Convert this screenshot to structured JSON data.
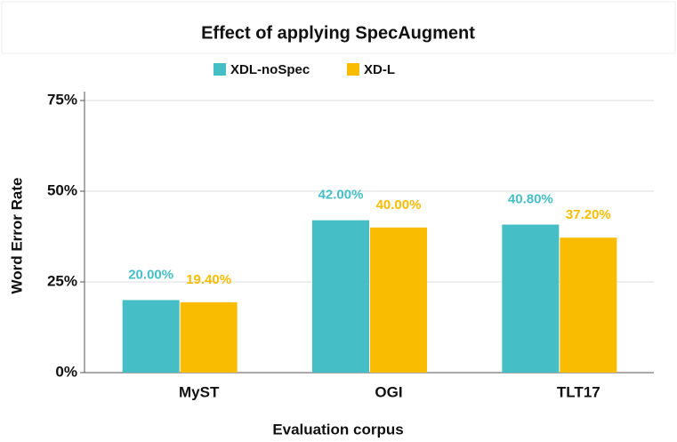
{
  "chart_data": {
    "type": "bar",
    "title": "Effect of applying SpecAugment",
    "xlabel": "Evaluation corpus",
    "ylabel": "Word Error Rate",
    "categories": [
      "MyST",
      "OGI",
      "TLT17"
    ],
    "series": [
      {
        "name": "XDL-noSpec",
        "color": "#45bec6",
        "values": [
          20.0,
          42.0,
          40.8
        ],
        "value_labels": [
          "20.00%",
          "42.00%",
          "40.80%"
        ]
      },
      {
        "name": "XD-L",
        "color": "#f9bc00",
        "values": [
          19.4,
          40.0,
          37.2
        ],
        "value_labels": [
          "19.40%",
          "40.00%",
          "37.20%"
        ]
      }
    ],
    "ylim": [
      0,
      75
    ],
    "yticks": [
      {
        "value": 0,
        "label": "0%"
      },
      {
        "value": 25,
        "label": "25%"
      },
      {
        "value": 50,
        "label": "50%"
      },
      {
        "value": 75,
        "label": "75%"
      }
    ],
    "grid": true,
    "legend": "top"
  }
}
